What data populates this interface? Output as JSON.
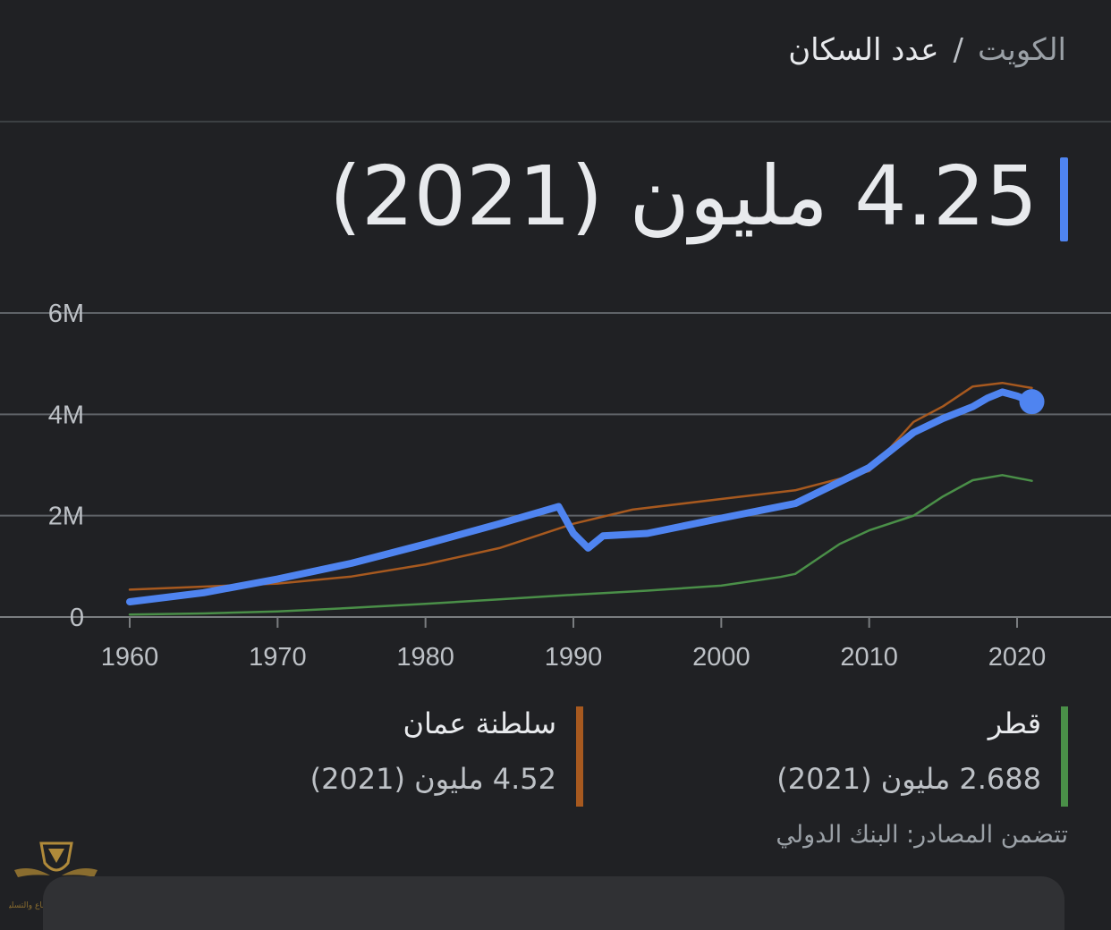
{
  "breadcrumb": {
    "country": "الكويت",
    "separator": "/",
    "metric": "عدد السكان"
  },
  "headline": "4.25 مليون (2021)",
  "legend": [
    {
      "key": "qatar",
      "name": "قطر",
      "value": "2.688 مليون (2021)",
      "color": "#4a8f48"
    },
    {
      "key": "oman",
      "name": "سلطنة عمان",
      "value": "4.52 مليون (2021)",
      "color": "#a7591f"
    }
  ],
  "source": "تتضمن المصادر: البنك الدولي",
  "watermark_text": "المنتدى العربي للدفاع والتسليح",
  "chart_data": {
    "type": "line",
    "xlim": [
      1960,
      2021
    ],
    "ylim": [
      0,
      6000000
    ],
    "x_ticks": [
      1960,
      1970,
      1980,
      1990,
      2000,
      2010,
      2020
    ],
    "y_ticks": [
      {
        "value": 0,
        "label": "0"
      },
      {
        "value": 2000000,
        "label": "2M"
      },
      {
        "value": 4000000,
        "label": "4M"
      },
      {
        "value": 6000000,
        "label": "6M"
      }
    ],
    "grid": true,
    "series": [
      {
        "name": "الكويت",
        "color": "#4f84f0",
        "points": [
          [
            1960,
            300000
          ],
          [
            1965,
            480000
          ],
          [
            1970,
            750000
          ],
          [
            1975,
            1060000
          ],
          [
            1980,
            1440000
          ],
          [
            1985,
            1840000
          ],
          [
            1989,
            2180000
          ],
          [
            1990,
            1650000
          ],
          [
            1991,
            1360000
          ],
          [
            1992,
            1600000
          ],
          [
            1995,
            1650000
          ],
          [
            2000,
            1950000
          ],
          [
            2005,
            2240000
          ],
          [
            2010,
            2950000
          ],
          [
            2013,
            3640000
          ],
          [
            2015,
            3920000
          ],
          [
            2017,
            4150000
          ],
          [
            2018,
            4320000
          ],
          [
            2019,
            4440000
          ],
          [
            2020,
            4360000
          ],
          [
            2021,
            4250000
          ]
        ]
      },
      {
        "name": "سلطنة عمان",
        "color": "#a7591f",
        "points": [
          [
            1960,
            540000
          ],
          [
            1965,
            600000
          ],
          [
            1970,
            660000
          ],
          [
            1975,
            800000
          ],
          [
            1980,
            1040000
          ],
          [
            1985,
            1360000
          ],
          [
            1990,
            1840000
          ],
          [
            1994,
            2120000
          ],
          [
            2000,
            2330000
          ],
          [
            2005,
            2500000
          ],
          [
            2010,
            2880000
          ],
          [
            2013,
            3850000
          ],
          [
            2015,
            4160000
          ],
          [
            2017,
            4550000
          ],
          [
            2019,
            4620000
          ],
          [
            2021,
            4520000
          ]
        ]
      },
      {
        "name": "قطر",
        "color": "#4a8f48",
        "points": [
          [
            1960,
            50000
          ],
          [
            1965,
            70000
          ],
          [
            1970,
            110000
          ],
          [
            1975,
            180000
          ],
          [
            1980,
            260000
          ],
          [
            1985,
            350000
          ],
          [
            1990,
            440000
          ],
          [
            1995,
            520000
          ],
          [
            2000,
            620000
          ],
          [
            2004,
            790000
          ],
          [
            2005,
            850000
          ],
          [
            2008,
            1440000
          ],
          [
            2010,
            1710000
          ],
          [
            2013,
            2000000
          ],
          [
            2015,
            2380000
          ],
          [
            2017,
            2700000
          ],
          [
            2019,
            2800000
          ],
          [
            2021,
            2688000
          ]
        ]
      }
    ]
  }
}
